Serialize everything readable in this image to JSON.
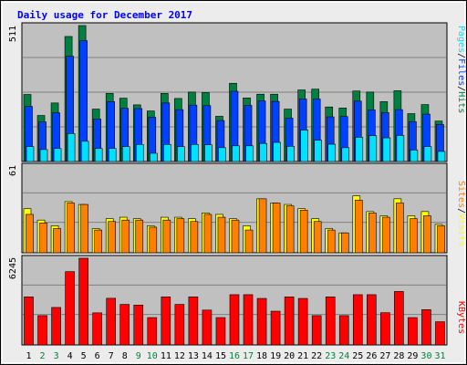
{
  "chart_data": [
    {
      "type": "bar",
      "title": "Daily usage for December 2017",
      "panel": "pages-files-hits",
      "x": [
        "1",
        "2",
        "3",
        "4",
        "5",
        "6",
        "7",
        "8",
        "9",
        "10",
        "11",
        "12",
        "13",
        "14",
        "15",
        "16",
        "17",
        "18",
        "19",
        "20",
        "21",
        "22",
        "23",
        "24",
        "25",
        "26",
        "27",
        "28",
        "29",
        "30",
        "31"
      ],
      "weekend_days": [
        "2",
        "3",
        "9",
        "10",
        "16",
        "17",
        "23",
        "24",
        "30",
        "31"
      ],
      "ytick": "511",
      "ylim": [
        0,
        511
      ],
      "series": [
        {
          "name": "Hits",
          "values": [
            252,
            173,
            220,
            470,
            511,
            197,
            256,
            238,
            213,
            190,
            256,
            237,
            261,
            259,
            170,
            294,
            239,
            253,
            253,
            197,
            269,
            272,
            205,
            201,
            265,
            261,
            225,
            266,
            180,
            214,
            152
          ]
        },
        {
          "name": "Files",
          "values": [
            207,
            149,
            183,
            396,
            454,
            160,
            225,
            200,
            199,
            166,
            220,
            195,
            212,
            210,
            154,
            264,
            211,
            228,
            226,
            163,
            235,
            235,
            168,
            169,
            227,
            194,
            184,
            195,
            150,
            178,
            139
          ]
        },
        {
          "name": "Pages",
          "values": [
            56,
            45,
            49,
            105,
            76,
            49,
            49,
            56,
            64,
            31,
            64,
            56,
            64,
            63,
            52,
            59,
            59,
            68,
            72,
            57,
            118,
            80,
            65,
            52,
            91,
            97,
            89,
            98,
            43,
            56,
            38
          ]
        }
      ]
    },
    {
      "type": "bar",
      "panel": "visits-sites",
      "x": [
        "1",
        "2",
        "3",
        "4",
        "5",
        "6",
        "7",
        "8",
        "9",
        "10",
        "11",
        "12",
        "13",
        "14",
        "15",
        "16",
        "17",
        "18",
        "19",
        "20",
        "21",
        "22",
        "23",
        "24",
        "25",
        "26",
        "27",
        "28",
        "29",
        "30",
        "31"
      ],
      "ytick": "61",
      "ylim": [
        0,
        61
      ],
      "series": [
        {
          "name": "Visits",
          "values": [
            31,
            23,
            19,
            36,
            34,
            17,
            24,
            25,
            24,
            19,
            25,
            25,
            24,
            28,
            27,
            24,
            19,
            38,
            35,
            34,
            31,
            24,
            17,
            14,
            40,
            29,
            26,
            38,
            26,
            29,
            20
          ]
        },
        {
          "name": "Sites",
          "values": [
            27,
            21,
            17,
            35,
            34,
            16,
            22,
            23,
            23,
            18,
            23,
            24,
            22,
            27,
            25,
            23,
            16,
            38,
            35,
            33,
            30,
            22,
            16,
            14,
            37,
            28,
            25,
            35,
            24,
            26,
            19
          ]
        }
      ]
    },
    {
      "type": "bar",
      "panel": "kbytes",
      "x": [
        "1",
        "2",
        "3",
        "4",
        "5",
        "6",
        "7",
        "8",
        "9",
        "10",
        "11",
        "12",
        "13",
        "14",
        "15",
        "16",
        "17",
        "18",
        "19",
        "20",
        "21",
        "22",
        "23",
        "24",
        "25",
        "26",
        "27",
        "28",
        "29",
        "30",
        "31"
      ],
      "ytick": "6245",
      "ylim": [
        0,
        6245
      ],
      "series": [
        {
          "name": "KBytes",
          "values": [
            3460,
            2110,
            2700,
            5280,
            6245,
            2310,
            3360,
            2920,
            2870,
            1970,
            3460,
            2920,
            3460,
            2510,
            1970,
            3620,
            3620,
            3350,
            2430,
            3460,
            3350,
            2110,
            3460,
            2110,
            3620,
            3620,
            2320,
            3850,
            1970,
            2540,
            1670
          ]
        }
      ]
    }
  ],
  "legend": {
    "panel1": [
      "Pages",
      "Files",
      "Hits"
    ],
    "panel1_seps": [
      "/",
      "/"
    ],
    "panel2": [
      "Sites",
      "Visits"
    ],
    "panel2_seps": [
      "/"
    ],
    "panel3": [
      "KBytes"
    ]
  },
  "colors": {
    "background": "#ececec",
    "plot_bg": "#c0c0c0",
    "title": "#0000ff",
    "weekday_label": "#000000",
    "weekend_label": "#008040",
    "Hits": "#008040",
    "Files": "#0040ff",
    "Pages": "#00e0ff",
    "Visits": "#ffff00",
    "Sites": "#ff8000",
    "KBytes": "#ff0000",
    "grid": "#808080"
  }
}
